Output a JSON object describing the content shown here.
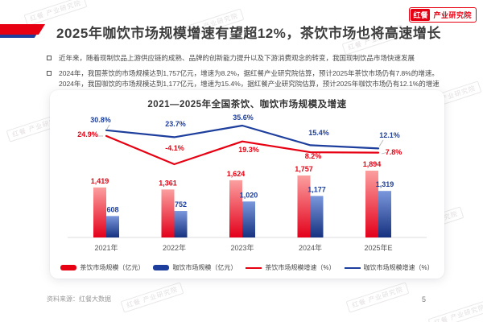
{
  "header": {
    "title": "2025年咖饮市场规模增速有望超12%，茶饮市场也将高速增长",
    "logo_badge": "红餐",
    "logo_text": "产业研究院"
  },
  "bullets": {
    "b1": "近年来，随着现制饮品上游供应链的成熟、品牌的创新能力提升以及下游消费观念的转变，我国现制饮品市场快速发展",
    "b2_line1": "2024年，我国茶饮的市场规模达到1,757亿元，增速为8.2%，据红餐产业研究院估算，预计2025年茶饮市场仍有7.8%的增速。",
    "b2_line2": "2024年，我国咖饮的市场规模达到1,177亿元，增速为15.4%，据红餐产业研究院估算，预计2025年咖饮市场仍有12.1%的增速"
  },
  "chart_data": {
    "type": "bar",
    "title": "2021—2025年全国茶饮、咖饮市场规模及增速",
    "categories": [
      "2021年",
      "2022年",
      "2023年",
      "2024年",
      "2025年E"
    ],
    "series": [
      {
        "name": "茶饮市场规模（亿元）",
        "type": "bar",
        "values": [
          1419,
          1361,
          1624,
          1757,
          1894
        ],
        "labels": [
          "1,419",
          "1,361",
          "1,624",
          "1,757",
          "1,894"
        ],
        "color": "#e60012",
        "gradient_top": "#fb9f9f",
        "gradient_bottom": "#e3001b"
      },
      {
        "name": "咖饮市场规模（亿元）",
        "type": "bar",
        "values": [
          608,
          752,
          1020,
          1177,
          1319
        ],
        "labels": [
          "608",
          "752",
          "1,020",
          "1,177",
          "1,319"
        ],
        "color": "#1d3e9c",
        "gradient_top": "#7b97dc",
        "gradient_bottom": "#16317f"
      },
      {
        "name": "茶饮市场规模增速（%）",
        "type": "line",
        "values": [
          24.9,
          -4.1,
          19.3,
          8.2,
          7.8
        ],
        "labels": [
          "24.9%",
          "-4.1%",
          "19.3%",
          "8.2%",
          "7.8%"
        ],
        "color": "#e60012"
      },
      {
        "name": "咖饮市场规模增速（%）",
        "type": "line",
        "values": [
          30.8,
          23.7,
          35.6,
          15.4,
          12.1
        ],
        "labels": [
          "30.8%",
          "23.7%",
          "35.6%",
          "15.4%",
          "12.1%"
        ],
        "color": "#1d3e9c"
      }
    ],
    "ylabel_bar": "亿元",
    "ylabel_line": "%",
    "legend_position": "bottom",
    "grid": false
  },
  "footer": {
    "source": "资料来源：红餐大数据",
    "page": "5"
  },
  "watermark": "红餐 产业研究院"
}
